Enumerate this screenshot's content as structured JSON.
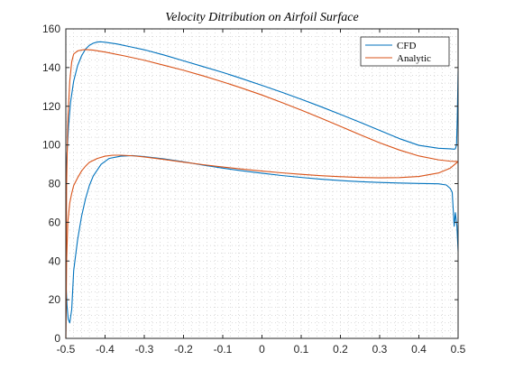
{
  "chart_data": {
    "type": "line",
    "title": "Velocity Ditribution on Airfoil Surface",
    "xlabel": "",
    "ylabel": "",
    "xlim": [
      -0.5,
      0.5
    ],
    "ylim": [
      0,
      160
    ],
    "xticks": [
      -0.5,
      -0.4,
      -0.3,
      -0.2,
      -0.1,
      0,
      0.1,
      0.2,
      0.3,
      0.4,
      0.5
    ],
    "xtick_labels": [
      "-0.5",
      "-0.4",
      "-0.3",
      "-0.2",
      "-0.1",
      "0",
      "0.1",
      "0.2",
      "0.3",
      "0.4",
      "0.5"
    ],
    "yticks": [
      0,
      20,
      40,
      60,
      80,
      100,
      120,
      140,
      160
    ],
    "ytick_labels": [
      "0",
      "20",
      "40",
      "60",
      "80",
      "100",
      "120",
      "140",
      "160"
    ],
    "grid": "minor dotted",
    "legend_position": "top-right",
    "colors": {
      "CFD": "#0072bd",
      "Analytic": "#d95319"
    },
    "series": [
      {
        "name": "CFD",
        "color": "#0072bd",
        "x": [
          -0.5,
          -0.497,
          -0.493,
          -0.488,
          -0.48,
          -0.47,
          -0.46,
          -0.45,
          -0.44,
          -0.43,
          -0.42,
          -0.41,
          -0.4,
          -0.37,
          -0.33,
          -0.3,
          -0.25,
          -0.2,
          -0.15,
          -0.1,
          -0.05,
          0.0,
          0.05,
          0.1,
          0.15,
          0.2,
          0.25,
          0.3,
          0.35,
          0.4,
          0.45,
          0.48,
          0.49,
          0.493,
          0.496,
          0.498,
          0.5
        ],
        "y": [
          75,
          95,
          110,
          122,
          133,
          141,
          146,
          149.5,
          151.5,
          152.6,
          153.2,
          153.3,
          153.1,
          152.2,
          150.5,
          149.2,
          146.5,
          143.5,
          140.5,
          137.5,
          134.2,
          130.8,
          127.3,
          123.6,
          119.8,
          115.8,
          111.7,
          107.5,
          103.3,
          99.8,
          98.3,
          98.0,
          97.8,
          98.0,
          100,
          115,
          138
        ],
        "x_lower": [
          -0.5,
          -0.497,
          -0.494,
          -0.49,
          -0.485,
          -0.48,
          -0.47,
          -0.46,
          -0.45,
          -0.44,
          -0.43,
          -0.41,
          -0.39,
          -0.36,
          -0.33,
          -0.3,
          -0.25,
          -0.2,
          -0.15,
          -0.1,
          -0.05,
          0.0,
          0.05,
          0.1,
          0.15,
          0.2,
          0.25,
          0.3,
          0.35,
          0.4,
          0.45,
          0.47,
          0.48,
          0.485,
          0.49,
          0.493,
          0.497,
          0.5
        ],
        "y_lower": [
          30,
          17,
          10,
          8,
          15,
          35,
          51,
          63,
          72,
          79,
          84,
          90,
          93,
          94.2,
          94.5,
          94.0,
          92.8,
          91.3,
          89.6,
          88.0,
          86.6,
          85.4,
          84.2,
          83.2,
          82.3,
          81.6,
          81.0,
          80.6,
          80.3,
          80.1,
          79.9,
          79.3,
          77.5,
          75.5,
          58,
          65,
          58,
          45
        ]
      },
      {
        "name": "Analytic",
        "color": "#d95319",
        "x": [
          -0.5,
          -0.498,
          -0.495,
          -0.49,
          -0.485,
          -0.48,
          -0.47,
          -0.46,
          -0.45,
          -0.44,
          -0.43,
          -0.4,
          -0.35,
          -0.3,
          -0.25,
          -0.2,
          -0.15,
          -0.1,
          -0.05,
          0.0,
          0.05,
          0.1,
          0.15,
          0.2,
          0.25,
          0.3,
          0.35,
          0.4,
          0.45,
          0.48,
          0.5
        ],
        "y": [
          0,
          80,
          112,
          133,
          143,
          147,
          148.6,
          149.1,
          149.3,
          149.2,
          149.0,
          148.0,
          146.0,
          143.8,
          141.2,
          138.6,
          135.7,
          132.6,
          129.3,
          125.8,
          122.0,
          118.0,
          113.9,
          109.6,
          105.3,
          101.1,
          97.4,
          94.3,
          92.3,
          91.6,
          91.4
        ],
        "x_lower": [
          -0.5,
          -0.498,
          -0.495,
          -0.49,
          -0.485,
          -0.48,
          -0.47,
          -0.46,
          -0.45,
          -0.44,
          -0.42,
          -0.4,
          -0.38,
          -0.36,
          -0.33,
          -0.3,
          -0.25,
          -0.2,
          -0.15,
          -0.1,
          -0.05,
          0.0,
          0.05,
          0.1,
          0.15,
          0.2,
          0.25,
          0.3,
          0.35,
          0.4,
          0.45,
          0.48,
          0.5
        ],
        "y_lower": [
          0,
          40,
          60,
          70,
          75,
          79,
          83,
          86.5,
          89,
          91,
          93,
          94.2,
          94.7,
          94.7,
          94.4,
          93.8,
          92.5,
          91.1,
          89.8,
          88.6,
          87.5,
          86.5,
          85.6,
          84.8,
          84.1,
          83.6,
          83.2,
          83.0,
          83.1,
          83.7,
          85.5,
          88.0,
          91.4
        ]
      }
    ]
  }
}
